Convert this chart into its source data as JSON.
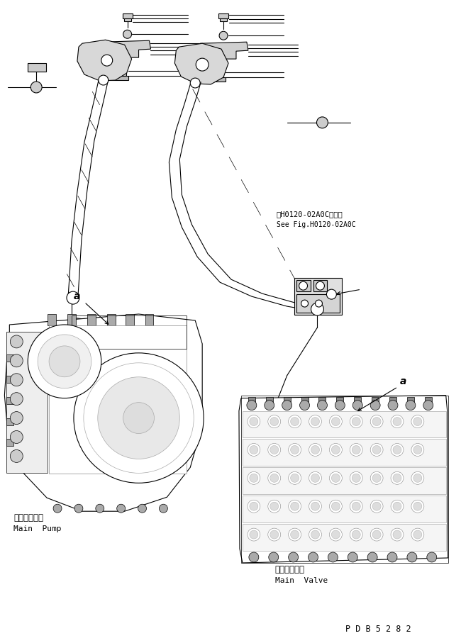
{
  "bg_color": "#ffffff",
  "lc": "#000000",
  "tc": "#000000",
  "lw": 0.8,
  "title_jp": "第H0120-02A0C図参照",
  "title_en": "See Fig.H0120-02A0C",
  "pump_jp": "メインポンプ",
  "pump_en": "Main  Pump",
  "valve_jp": "メインバルブ",
  "valve_en": "Main  Valve",
  "label_a": "a",
  "code": "P D B 5 2 8 2"
}
